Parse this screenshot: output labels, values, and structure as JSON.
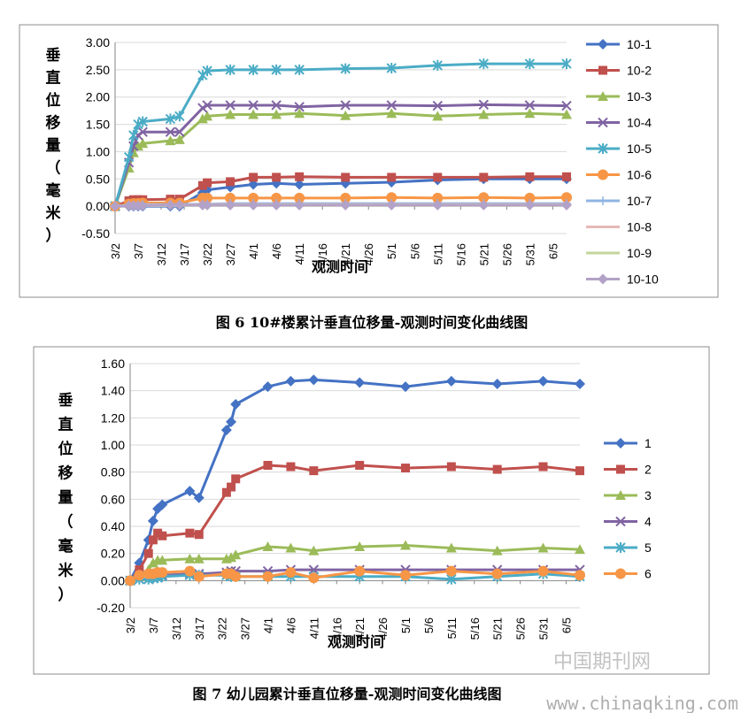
{
  "captions": [
    "图 6  10#楼累计垂直位移量-观测时间变化曲线图",
    "图 7  幼儿园累计垂直位移量-观测时间变化曲线图"
  ],
  "watermark": {
    "cn": "中国期刊网",
    "url": "www.chinaqking.com"
  },
  "chart_data": [
    {
      "type": "line",
      "xlabel": "观测时间",
      "ylabel": "垂直位移量（毫米）",
      "ylim": [
        -0.5,
        3.0
      ],
      "yticks": [
        "3.00",
        "2.50",
        "2.00",
        "1.50",
        "1.00",
        "0.50",
        "0.00",
        "-0.50"
      ],
      "xlim": [
        0,
        98
      ],
      "xtick_positions": [
        0,
        5,
        10,
        15,
        20,
        25,
        30,
        35,
        40,
        45,
        50,
        55,
        60,
        65,
        70,
        75,
        80,
        85,
        90,
        95
      ],
      "xtick_labels": [
        "3/2",
        "3/7",
        "3/12",
        "3/17",
        "3/22",
        "3/27",
        "4/1",
        "4/6",
        "4/11",
        "4/16",
        "4/21",
        "4/26",
        "5/1",
        "5/6",
        "5/11",
        "5/16",
        "5/21",
        "5/26",
        "5/31",
        "6/5"
      ],
      "legend_position": "right",
      "x": [
        0,
        3,
        4,
        5,
        6,
        12,
        14,
        19,
        20,
        25,
        30,
        35,
        40,
        50,
        60,
        70,
        80,
        90,
        98
      ],
      "series": [
        {
          "name": "10-1",
          "color": "#4472C4",
          "marker": "diamond",
          "values": [
            0,
            0,
            0,
            0,
            0,
            0,
            0,
            0.25,
            0.3,
            0.35,
            0.4,
            0.42,
            0.4,
            0.42,
            0.44,
            0.48,
            0.5,
            0.5,
            0.5
          ]
        },
        {
          "name": "10-2",
          "color": "#C0504D",
          "marker": "square",
          "values": [
            0,
            0.1,
            0.12,
            0.12,
            0.12,
            0.13,
            0.13,
            0.38,
            0.43,
            0.45,
            0.53,
            0.53,
            0.54,
            0.53,
            0.53,
            0.53,
            0.53,
            0.54,
            0.54
          ]
        },
        {
          "name": "10-3",
          "color": "#9BBB59",
          "marker": "triangle",
          "values": [
            0,
            0.7,
            0.98,
            1.1,
            1.15,
            1.2,
            1.22,
            1.6,
            1.65,
            1.68,
            1.68,
            1.68,
            1.7,
            1.66,
            1.7,
            1.65,
            1.68,
            1.7,
            1.68
          ]
        },
        {
          "name": "10-4",
          "color": "#8064A2",
          "marker": "x",
          "values": [
            0,
            0.8,
            1.1,
            1.3,
            1.36,
            1.36,
            1.36,
            1.8,
            1.85,
            1.85,
            1.85,
            1.85,
            1.82,
            1.85,
            1.85,
            1.84,
            1.86,
            1.85,
            1.84
          ]
        },
        {
          "name": "10-5",
          "color": "#4BACC6",
          "marker": "star",
          "values": [
            0,
            0.9,
            1.3,
            1.5,
            1.55,
            1.6,
            1.65,
            2.4,
            2.48,
            2.5,
            2.5,
            2.5,
            2.5,
            2.52,
            2.53,
            2.58,
            2.61,
            2.61,
            2.61
          ]
        },
        {
          "name": "10-6",
          "color": "#F79646",
          "marker": "circle",
          "values": [
            0,
            0.04,
            0.05,
            0.05,
            0.06,
            0.06,
            0.06,
            0.15,
            0.15,
            0.15,
            0.15,
            0.15,
            0.15,
            0.15,
            0.16,
            0.15,
            0.16,
            0.15,
            0.16
          ]
        },
        {
          "name": "10-7",
          "color": "#8EB4E3",
          "marker": "plus",
          "values": [
            0,
            0.02,
            0.02,
            0.02,
            0.03,
            0.03,
            0.03,
            0.04,
            0.04,
            0.05,
            0.05,
            0.05,
            0.05,
            0.05,
            0.05,
            0.05,
            0.05,
            0.05,
            0.05
          ]
        },
        {
          "name": "10-8",
          "color": "#E6B9B8",
          "marker": "none",
          "values": [
            0,
            0.01,
            0.01,
            0.01,
            0.02,
            0.02,
            0.02,
            0.03,
            0.03,
            0.03,
            0.03,
            0.03,
            0.03,
            0.03,
            0.03,
            0.03,
            0.03,
            0.03,
            0.03
          ]
        },
        {
          "name": "10-9",
          "color": "#C3D69B",
          "marker": "none",
          "values": [
            0,
            0.01,
            0.01,
            0.01,
            0.01,
            0.01,
            0.01,
            0.02,
            0.02,
            0.02,
            0.02,
            0.02,
            0.02,
            0.02,
            0.02,
            0.02,
            0.02,
            0.02,
            0.02
          ]
        },
        {
          "name": "10-10",
          "color": "#B3A2C7",
          "marker": "diamond",
          "values": [
            0,
            0.01,
            0.01,
            0.01,
            0.01,
            0.02,
            0.02,
            0.02,
            0.02,
            0.02,
            0.02,
            0.02,
            0.02,
            0.02,
            0.02,
            0.02,
            0.02,
            0.02,
            0.02
          ]
        }
      ]
    },
    {
      "type": "line",
      "xlabel": "观测时间",
      "ylabel": "垂直位移量（毫米）",
      "ylim": [
        -0.2,
        1.6
      ],
      "yticks": [
        "1.60",
        "1.40",
        "1.20",
        "1.00",
        "0.80",
        "0.60",
        "0.40",
        "0.20",
        "0.00",
        "-0.20"
      ],
      "xlim": [
        0,
        98
      ],
      "xtick_positions": [
        0,
        5,
        10,
        15,
        20,
        25,
        30,
        35,
        40,
        45,
        50,
        55,
        60,
        65,
        70,
        75,
        80,
        85,
        90,
        95
      ],
      "xtick_labels": [
        "3/2",
        "3/7",
        "3/12",
        "3/17",
        "3/22",
        "3/27",
        "4/1",
        "4/6",
        "4/11",
        "4/16",
        "4/21",
        "4/26",
        "5/1",
        "5/6",
        "5/11",
        "5/16",
        "5/21",
        "5/26",
        "5/31",
        "6/5"
      ],
      "legend_position": "right",
      "x": [
        0,
        2,
        4,
        5,
        6,
        7,
        13,
        15,
        21,
        22,
        23,
        30,
        35,
        40,
        50,
        60,
        70,
        80,
        90,
        98
      ],
      "series": [
        {
          "name": "1",
          "color": "#4472C4",
          "marker": "diamond",
          "values": [
            0,
            0.13,
            0.3,
            0.44,
            0.53,
            0.56,
            0.66,
            0.61,
            1.11,
            1.17,
            1.3,
            1.43,
            1.47,
            1.48,
            1.46,
            1.43,
            1.47,
            1.45,
            1.47,
            1.45
          ]
        },
        {
          "name": "2",
          "color": "#C0504D",
          "marker": "square",
          "values": [
            0,
            0.08,
            0.2,
            0.3,
            0.35,
            0.33,
            0.35,
            0.34,
            0.65,
            0.69,
            0.75,
            0.85,
            0.84,
            0.81,
            0.85,
            0.83,
            0.84,
            0.82,
            0.84,
            0.81
          ]
        },
        {
          "name": "3",
          "color": "#9BBB59",
          "marker": "triangle",
          "values": [
            0,
            0.03,
            0.08,
            0.13,
            0.15,
            0.15,
            0.16,
            0.16,
            0.16,
            0.17,
            0.19,
            0.25,
            0.24,
            0.22,
            0.25,
            0.26,
            0.24,
            0.22,
            0.24,
            0.23
          ]
        },
        {
          "name": "4",
          "color": "#8064A2",
          "marker": "x",
          "values": [
            0,
            0.01,
            0.01,
            0.02,
            0.03,
            0.04,
            0.05,
            0.05,
            0.06,
            0.07,
            0.07,
            0.07,
            0.08,
            0.08,
            0.08,
            0.08,
            0.08,
            0.08,
            0.08,
            0.08
          ]
        },
        {
          "name": "5",
          "color": "#4BACC6",
          "marker": "star",
          "values": [
            0,
            0.01,
            0.01,
            0.02,
            0.02,
            0.03,
            0.04,
            0.04,
            0.04,
            0.03,
            0.03,
            0.03,
            0.03,
            0.03,
            0.03,
            0.03,
            0.01,
            0.03,
            0.05,
            0.03
          ]
        },
        {
          "name": "6",
          "color": "#F79646",
          "marker": "circle",
          "values": [
            0,
            0.04,
            0.05,
            0.05,
            0.06,
            0.06,
            0.07,
            0.03,
            0.05,
            0.05,
            0.03,
            0.03,
            0.06,
            0.02,
            0.07,
            0.04,
            0.07,
            0.05,
            0.07,
            0.04
          ]
        }
      ]
    }
  ]
}
